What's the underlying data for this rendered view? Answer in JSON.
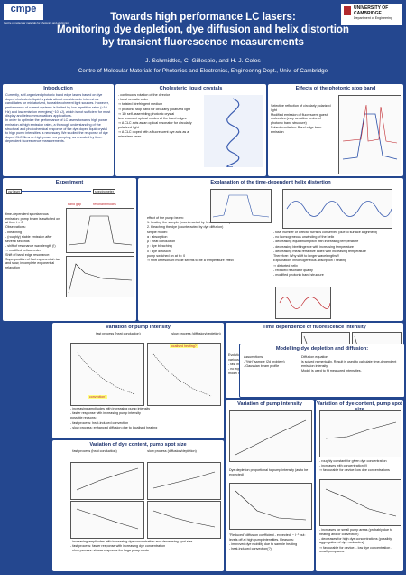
{
  "header": {
    "title": [
      "Towards high performance LC lasers:",
      "Monitoring dye depletion, dye diffusion and helix distortion",
      "by transient fluorescence measurements"
    ],
    "authors": "J. Schmidtke, C. Gillespie, and H. J. Coles",
    "affiliation": "Centre of Molecular Materials for Photonics and Electronics, Engineering Dept., Univ. of Cambridge",
    "logo_left": "cmpe",
    "logo_left_sub": "Centre of molecular materials for photonics and electronics",
    "logo_right": "UNIVERSITY OF CAMBRIDGE",
    "logo_right_sub": "Department of Engineering"
  },
  "panels": [
    {
      "title": "Introduction",
      "columns": [
        [
          "Currently, self-organized photonic band edge lasers based on dye doped cholesteric liquid crystals attract considerable interest as candidates for miniaturized, tuneable coherent light sources. However, performance of current systems is limited by low repetition rates (~10 Hz) and low emission energies (~10 µJ), which is not sufficient for most display and telecommunications applications.",
          "In order to optimize the performance of LC lasers towards high power emission at high emission rates, a thorough understanding of the structural and photochemical response of the dye doped liquid crystal to high pump intensities is necessary. We studied the response of dye doped CLC films on high power cw pumping, as revealed by time-dependent fluorescence measurements."
        ]
      ]
    },
    {
      "title": "Cholesteric liquid crystals",
      "columns": [
        [
          "- continuous rotation of the director",
          "- local nematic order",
          "⇒ twisted birefringent medium",
          "⇒ photonic stop band for circularly polarized light",
          "⇒ 1D self-assembling photonic crystal",
          "two resonant optical modes at the band edges",
          "⇒ A CLC acts as an optical resonator for circularly polarized light",
          "⇒ A CLC doped with a fluorescent dye acts as a mirrorless laser"
        ]
      ]
    },
    {
      "title": "Effects of the photonic stop band",
      "columns": [
        [
          "Selective reflection of circularly polarized light",
          "Modified emission of fluorescent guest molecules (very sensitive probe of photonic band structure)",
          "Pulsed excitation: Band edge laser emission"
        ]
      ]
    },
    {
      "title": "Experiment",
      "columns": [
        [
          "time-dependent spontaneous emission: pump beam is switched on at time t = 0",
          "Observations:",
          "- bleaching",
          "- (roughly) stable emission after several seconds",
          "- shift of resonance wavelength (!)",
          "⇒ modified helical order",
          "Shift of band edge resonance: Superposition of fast exponential rise and slow, incomplete exponential relaxation"
        ],
        [
          "cw laser",
          "spectrometer",
          "band gap",
          "resonant modes"
        ]
      ]
    },
    {
      "title": "Explanation of the time-dependent helix distortion",
      "columns": [
        [
          "effect of the pump beam:",
          "1. heating the sample (counteracted by heat conduction)",
          "2. bleaching the dye (counteracted by dye diffusion)",
          "simple model:",
          "α : absorption",
          "β : heat conduction",
          "γ : dye bleaching",
          "δ : dye diffusion",
          "pump switched on at t = 0",
          "⇒ shift of resonant mode seems to be a temperature effect"
        ],
        [
          "- total number of director turns is conserved (due to surface alignment)",
          "- no homogeneous unwinding of the helix",
          "- decreasing equilibrium pitch with increasing temperature",
          "- decreasing birefringence with increasing temperature",
          "- decreasing mean refractive index with increasing temperature",
          "Therefore: Why shift to longer wavelengths?!",
          "Explanation: inhomogeneous absorption / heating",
          "⇒ distorted helix",
          "- reduced resonator quality",
          "- modified photonic band structure"
        ]
      ]
    },
    {
      "title": "Variation of pump intensity",
      "columns": [
        [
          "fast process (heat conduction)"
        ],
        [
          "slow process (diffusion/depletion)"
        ],
        [
          "- increasing amplitudes with increasing pump intensity",
          "- faster response with increasing pump intensity",
          "possible reasons:",
          "- fast process: heat-induced convection",
          "- slow process: enhanced diffusion due to localised heating"
        ],
        [
          "convection?",
          "localised heating?"
        ]
      ]
    },
    {
      "title": "Time dependence of fluorescence intensity",
      "columns": [
        [
          "Evolution of fluorescence intensity for various pump intensities:",
          "- fast initial decay",
          "- no equilibrium is reached (simple toy model not sufficient)"
        ]
      ]
    },
    {
      "title": "Modelling dye depletion and diffusion:",
      "columns": [
        [
          "Assumptions:",
          "- \"thin\" sample (2d problem)",
          "- Gaussian beam profile"
        ],
        [
          "Diffusion equation",
          "is solved numerically. Result is used to calculate time-dependent emission intensity.",
          "Model is used to fit measured intensities."
        ]
      ]
    },
    {
      "title": "Variation of dye content, pump spot size",
      "columns": [
        [
          "fast process (heat conduction)"
        ],
        [
          "slow process (diffusion/depletion)"
        ],
        [
          "- increasing amplitudes with increasing dye concentration and decreasing spot size",
          "- fast process: faster response with increasing dye concentration",
          "- slow process: slower response for large pump spots"
        ]
      ]
    },
    {
      "title": "Variation of pump intensity",
      "columns": [
        [
          "Dye depletion proportional to pump intensity (as to be expected)"
        ],
        [
          "\"Reduced\" diffusion coefficient - expected: ~ I⁻¹ but: levels off at high pump intensities. Reasons:",
          "- improved dye mobility due to sample heating",
          "- heat-induced convection(?)"
        ]
      ]
    },
    {
      "title": "Variation of dye content, pump spot size",
      "columns": [
        [
          "- roughly constant for given dye concentration",
          "- increases with concentration (!)",
          "⇒ favourable for device: low dye concentrations"
        ],
        [
          "- increases for small pump areas (probably due to heating and/or convection)",
          "- decreases for high dye concentrations (possibly aggregation of dye molecules)",
          "⇒ favourable for device: - low dye concentration - small pump area"
        ]
      ]
    }
  ]
}
